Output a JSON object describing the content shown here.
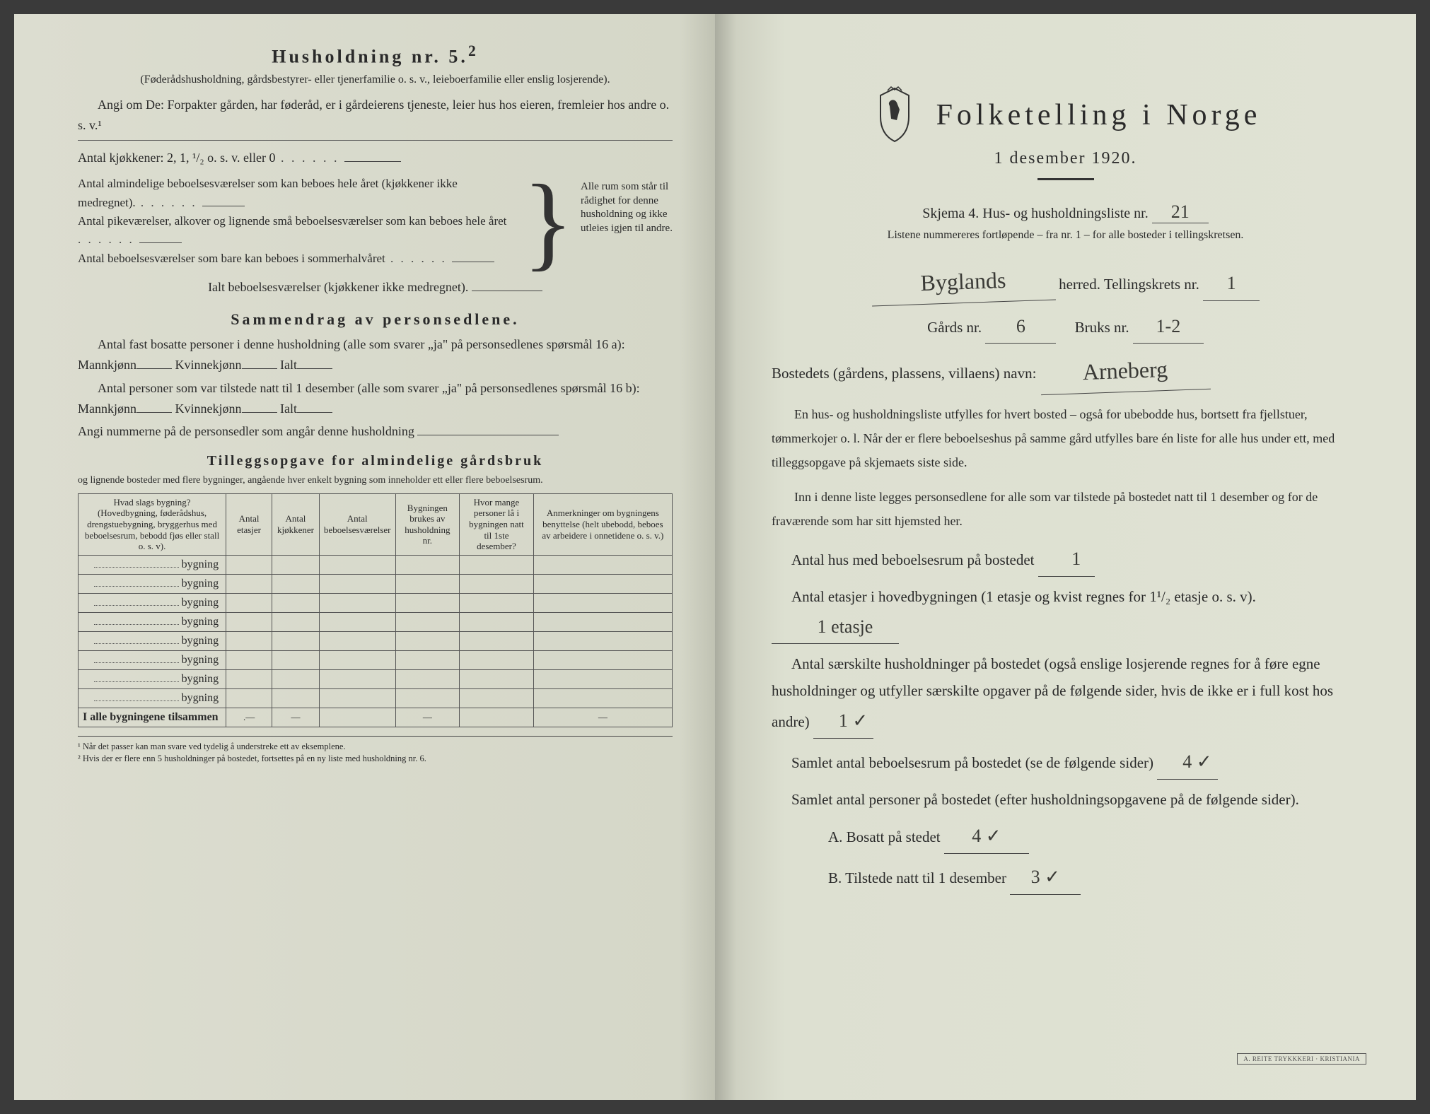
{
  "left": {
    "heading": "Husholdning nr. 5.",
    "heading_sup": "2",
    "sub1": "(Føderådshusholdning, gårdsbestyrer- eller tjenerfamilie o. s. v., leieboerfamilie eller enslig losjerende).",
    "sub2": "Angi om De: Forpakter gården, har føderåd, er i gårdeierens tjeneste, leier hus hos eieren, fremleier hos andre o. s. v.¹",
    "kitchens_label": "Antal kjøkkener: 2, 1, ¹/₂ o. s. v. eller 0",
    "brace_lines": [
      "Antal almindelige beboelsesværelser som kan beboes hele året (kjøkkener ikke medregnet).",
      "Antal pikeværelser, alkover og lignende små beboelsesværelser som kan beboes hele året",
      "Antal beboelsesværelser som bare kan beboes i sommerhalvåret"
    ],
    "brace_right": "Alle rum som står til rådighet for denne husholdning og ikke utleies igjen til andre.",
    "ialt_label": "Ialt beboelsesværelser  (kjøkkener ikke medregnet).",
    "sammen_title": "Sammendrag av personsedlene.",
    "sammen_p1a": "Antal fast bosatte personer i denne husholdning (alle som svarer „ja\" på personsedlenes spørsmål 16 a): Mannkjønn",
    "sammen_kv": "Kvinnekjønn",
    "sammen_ialt": "Ialt",
    "sammen_p2": "Antal personer som var tilstede natt til 1 desember (alle som svarer „ja\" på personsedlenes spørsmål 16 b): Mannkjønn",
    "sammen_p3": "Angi nummerne på de personsedler som angår denne husholdning",
    "tillegg_title": "Tilleggsopgave for almindelige gårdsbruk",
    "tillegg_sub": "og lignende bosteder med flere bygninger, angående hver enkelt bygning som inneholder ett eller flere beboelsesrum.",
    "table": {
      "headers": [
        "Hvad slags bygning?\n(Hovedbygning, føderådshus, drengstuebygning, bryggerhus med beboelsesrum, bebodd fjøs eller stall o. s. v).",
        "Antal etasjer",
        "Antal kjøkkener",
        "Antal beboelsesværelser",
        "Bygningen brukes av husholdning nr.",
        "Hvor mange personer lå i bygningen natt til 1ste desember?",
        "Anmerkninger om bygningens benyttelse (helt ubebodd, beboes av arbeidere i onnetidene o. s. v.)"
      ],
      "row_label": "bygning",
      "row_count": 8,
      "sum_label": "I alle bygningene tilsammen"
    },
    "footnote1": "¹ Når det passer kan man svare ved tydelig å understreke ett av eksemplene.",
    "footnote2": "² Hvis der er flere enn 5 husholdninger på bostedet, fortsettes på en ny liste med husholdning nr. 6."
  },
  "right": {
    "title": "Folketelling  i  Norge",
    "date": "1 desember 1920.",
    "schema_label": "Skjema 4.   Hus- og husholdningsliste nr.",
    "schema_nr": "21",
    "note": "Listene nummereres fortløpende – fra nr. 1 – for alle bosteder i tellingskretsen.",
    "herred_value": "Byglands",
    "herred_label": "herred.  Tellingskrets nr.",
    "krets_nr": "1",
    "gard_label": "Gårds nr.",
    "gard_nr": "6",
    "bruk_label": "Bruks nr.",
    "bruk_nr": "1-2",
    "bosted_label": "Bostedets (gårdens, plassens, villaens) navn:",
    "bosted_value": "Arneberg",
    "body1": "En hus- og husholdningsliste utfylles for hvert bosted – også for ubebodde hus, bortsett fra fjellstuer, tømmerkojer o. l.  Når der er flere beboelseshus på samme gård utfylles bare én liste for alle hus under ett, med tilleggsopgave på skjemaets siste side.",
    "body2": "Inn i denne liste legges personsedlene for alle som var tilstede på bostedet natt til 1 desember og for de fraværende som har sitt hjemsted her.",
    "q1_label": "Antal hus med beboelsesrum på bostedet",
    "q1_val": "1",
    "q2_label_a": "Antal etasjer i hovedbygningen (1 etasje og kvist regnes for 1¹/₂ etasje o. s. v).",
    "q2_val": "1 etasje",
    "q3_label": "Antal særskilte husholdninger på bostedet (også enslige losjerende regnes for å føre egne husholdninger og utfyller særskilte opgaver på de følgende sider, hvis de ikke er i full kost hos andre)",
    "q3_val": "1 ✓",
    "q4_label": "Samlet antal beboelsesrum på bostedet (se de følgende sider)",
    "q4_val": "4 ✓",
    "q5_label": "Samlet antal personer på bostedet (efter husholdningsopgavene på de følgende sider).",
    "qA_label": "A.  Bosatt på stedet",
    "qA_val": "4 ✓",
    "qB_label": "B.  Tilstede natt til 1 desember",
    "qB_val": "3 ✓",
    "stamp": "A. REITE TRYKKKERI · KRISTIANIA"
  },
  "colors": {
    "paper": "#e0e2d4",
    "ink": "#2a2a2a",
    "hand": "#3a3a36"
  }
}
